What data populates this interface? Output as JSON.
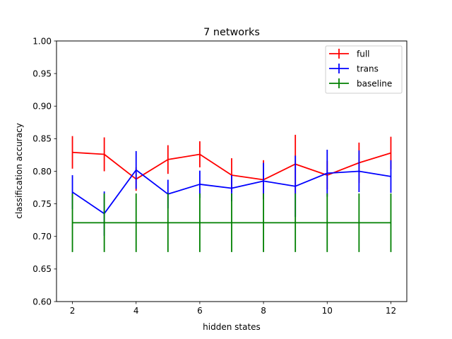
{
  "chart_data": {
    "type": "line",
    "title": "7 networks",
    "xlabel": "hidden states",
    "ylabel": "classification accuracy",
    "xlim": [
      1.5,
      12.5
    ],
    "ylim": [
      0.6,
      1.0
    ],
    "xticks": [
      2,
      4,
      6,
      8,
      10,
      12
    ],
    "xtick_labels": [
      "2",
      "4",
      "6",
      "8",
      "10",
      "12"
    ],
    "yticks": [
      0.6,
      0.65,
      0.7,
      0.75,
      0.8,
      0.85,
      0.9,
      0.95,
      1.0
    ],
    "ytick_labels": [
      "0.60",
      "0.65",
      "0.70",
      "0.75",
      "0.80",
      "0.85",
      "0.90",
      "0.95",
      "1.00"
    ],
    "grid": false,
    "legend_position": "top-right",
    "x": [
      2,
      3,
      4,
      5,
      6,
      7,
      8,
      9,
      10,
      11,
      12
    ],
    "series": [
      {
        "name": "full",
        "color": "#ff0000",
        "values": [
          0.829,
          0.826,
          0.788,
          0.818,
          0.826,
          0.794,
          0.787,
          0.811,
          0.794,
          0.813,
          0.828
        ],
        "errors": [
          0.025,
          0.026,
          0.018,
          0.022,
          0.02,
          0.026,
          0.03,
          0.045,
          0.022,
          0.031,
          0.025
        ]
      },
      {
        "name": "trans",
        "color": "#0000ff",
        "values": [
          0.768,
          0.735,
          0.802,
          0.765,
          0.78,
          0.774,
          0.785,
          0.777,
          0.797,
          0.8,
          0.792
        ],
        "errors": [
          0.026,
          0.034,
          0.029,
          0.022,
          0.021,
          0.02,
          0.028,
          0.047,
          0.036,
          0.032,
          0.025
        ]
      },
      {
        "name": "baseline",
        "color": "#008000",
        "values": [
          0.721,
          0.721,
          0.721,
          0.721,
          0.721,
          0.721,
          0.721,
          0.721,
          0.721,
          0.721,
          0.721
        ],
        "errors": [
          0.045,
          0.045,
          0.045,
          0.045,
          0.045,
          0.045,
          0.045,
          0.045,
          0.045,
          0.045,
          0.045
        ]
      }
    ]
  }
}
